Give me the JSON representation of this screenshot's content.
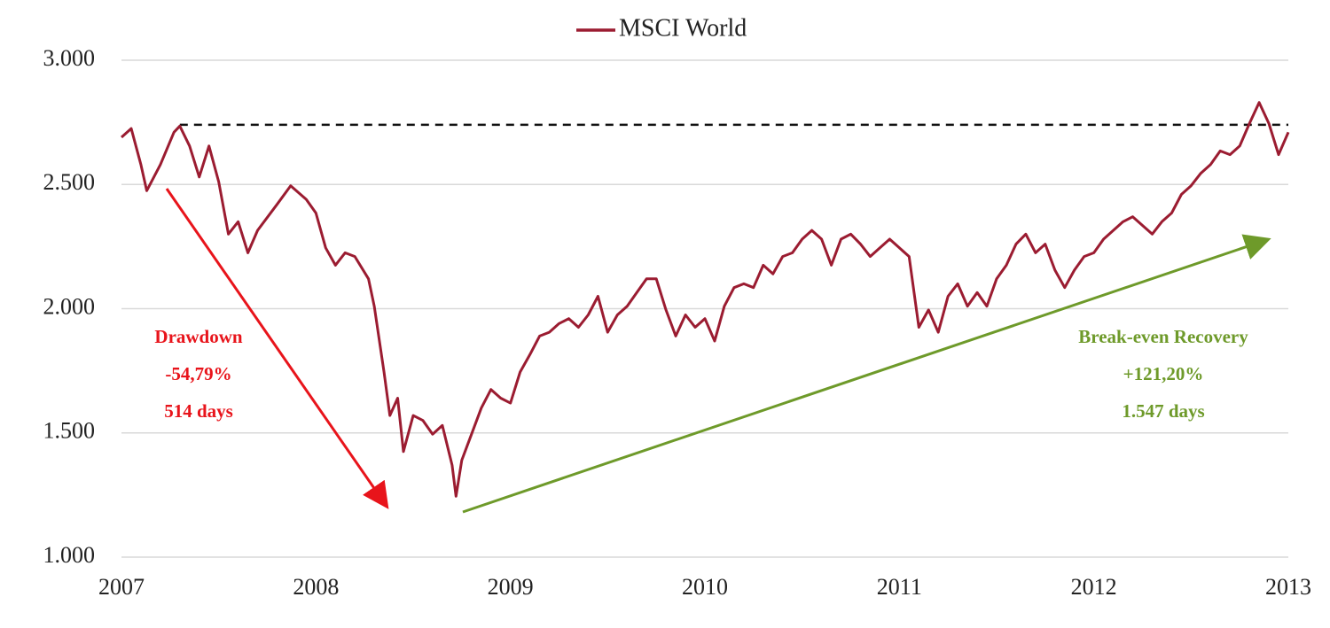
{
  "chart_data": {
    "type": "line",
    "series": [
      {
        "name": "MSCI World",
        "color": "#9b1c31",
        "x": [
          2007.0,
          2007.05,
          2007.1,
          2007.13,
          2007.2,
          2007.27,
          2007.3,
          2007.35,
          2007.4,
          2007.45,
          2007.5,
          2007.55,
          2007.6,
          2007.65,
          2007.7,
          2007.8,
          2007.87,
          2007.95,
          2008.0,
          2008.05,
          2008.1,
          2008.15,
          2008.2,
          2008.27,
          2008.3,
          2008.35,
          2008.38,
          2008.42,
          2008.45,
          2008.5,
          2008.55,
          2008.6,
          2008.65,
          2008.7,
          2008.72,
          2008.75,
          2008.8,
          2008.85,
          2008.9,
          2008.95,
          2009.0,
          2009.05,
          2009.1,
          2009.15,
          2009.2,
          2009.25,
          2009.3,
          2009.35,
          2009.4,
          2009.45,
          2009.5,
          2009.55,
          2009.6,
          2009.65,
          2009.7,
          2009.75,
          2009.8,
          2009.85,
          2009.9,
          2009.95,
          2010.0,
          2010.05,
          2010.1,
          2010.15,
          2010.2,
          2010.25,
          2010.3,
          2010.35,
          2010.4,
          2010.45,
          2010.5,
          2010.55,
          2010.6,
          2010.65,
          2010.7,
          2010.75,
          2010.8,
          2010.85,
          2010.9,
          2010.95,
          2011.0,
          2011.05,
          2011.1,
          2011.15,
          2011.2,
          2011.25,
          2011.3,
          2011.35,
          2011.4,
          2011.45,
          2011.5,
          2011.55,
          2011.6,
          2011.65,
          2011.7,
          2011.75,
          2011.8,
          2011.85,
          2011.9,
          2011.95,
          2012.0,
          2012.05,
          2012.1,
          2012.15,
          2012.2,
          2012.25,
          2012.3,
          2012.35,
          2012.4,
          2012.45,
          2012.5,
          2012.55,
          2012.6,
          2012.65,
          2012.7,
          2012.75,
          2012.8,
          2012.85,
          2012.9,
          2012.95,
          2013.0
        ],
        "values": [
          2690,
          2725,
          2580,
          2475,
          2580,
          2710,
          2735,
          2655,
          2530,
          2655,
          2510,
          2300,
          2350,
          2225,
          2315,
          2420,
          2495,
          2440,
          2385,
          2245,
          2175,
          2225,
          2210,
          2120,
          2010,
          1745,
          1570,
          1640,
          1425,
          1570,
          1550,
          1495,
          1530,
          1370,
          1245,
          1390,
          1495,
          1600,
          1675,
          1640,
          1620,
          1745,
          1815,
          1890,
          1905,
          1940,
          1960,
          1925,
          1975,
          2050,
          1905,
          1975,
          2010,
          2065,
          2120,
          2120,
          1995,
          1890,
          1975,
          1925,
          1960,
          1870,
          2010,
          2085,
          2100,
          2085,
          2175,
          2140,
          2210,
          2225,
          2280,
          2315,
          2280,
          2175,
          2280,
          2300,
          2260,
          2210,
          2245,
          2280,
          2245,
          2210,
          1925,
          1995,
          1905,
          2050,
          2100,
          2010,
          2065,
          2010,
          2120,
          2175,
          2260,
          2300,
          2225,
          2260,
          2155,
          2085,
          2155,
          2210,
          2225,
          2280,
          2315,
          2350,
          2370,
          2335,
          2300,
          2350,
          2385,
          2460,
          2495,
          2545,
          2580,
          2635,
          2620,
          2655,
          2745,
          2830,
          2745,
          2620,
          2710
        ]
      }
    ],
    "reference_line": {
      "value": 2740,
      "x": [
        2007.3,
        2013.0
      ]
    },
    "xlim": [
      2007,
      2013
    ],
    "xticks": [
      2007,
      2008,
      2009,
      2010,
      2011,
      2012,
      2013
    ],
    "ylim": [
      1000,
      3000
    ],
    "yticks": [
      {
        "value": 1000,
        "label": "1.000"
      },
      {
        "value": 1500,
        "label": "1.500"
      },
      {
        "value": 2000,
        "label": "2.000"
      },
      {
        "value": 2500,
        "label": "2.500"
      },
      {
        "value": 3000,
        "label": "3.000"
      }
    ],
    "grid": true,
    "annotations": [
      {
        "color": "#e8141b",
        "lines": [
          "Drawdown",
          "-54,79%",
          "514 days"
        ]
      },
      {
        "color": "#6e9a2a",
        "lines": [
          "Break-even Recovery",
          "+121,20%",
          "1.547 days"
        ]
      }
    ]
  }
}
